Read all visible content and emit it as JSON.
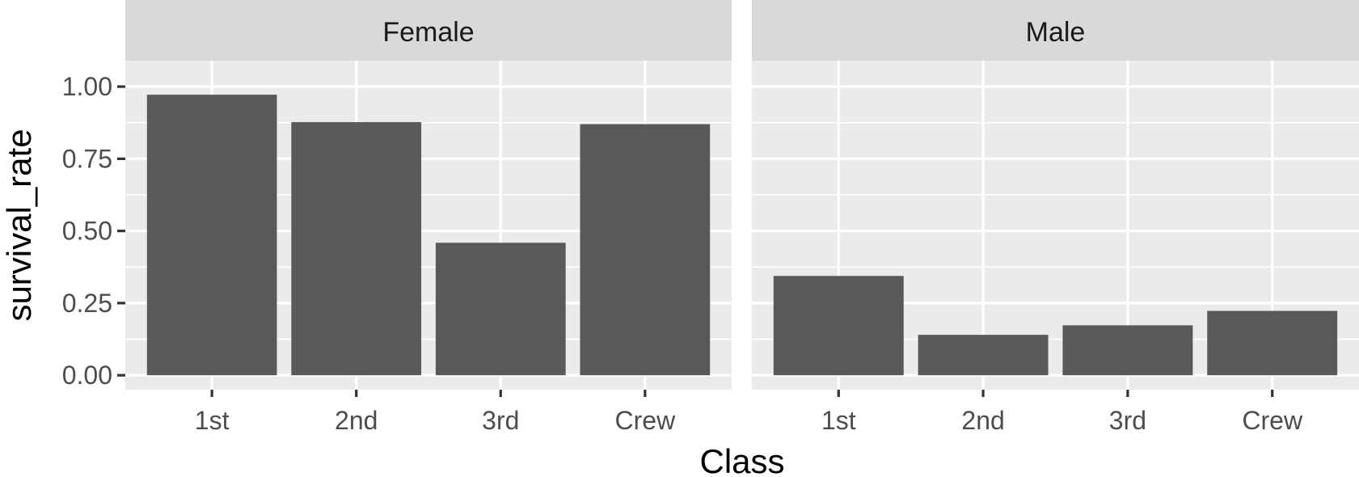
{
  "chart_data": {
    "type": "bar",
    "facet_by": "Sex",
    "categories": [
      "1st",
      "2nd",
      "3rd",
      "Crew"
    ],
    "facets": [
      {
        "label": "Female",
        "values": [
          0.972,
          0.877,
          0.459,
          0.87
        ]
      },
      {
        "label": "Male",
        "values": [
          0.344,
          0.14,
          0.173,
          0.223
        ]
      }
    ],
    "xlabel": "Class",
    "ylabel": "survival_rate",
    "ylim": [
      -0.05,
      1.09
    ],
    "yticks": [
      0,
      0.25,
      0.5,
      0.75,
      1.0
    ],
    "ytick_labels": [
      "0.00",
      "0.25",
      "0.50",
      "0.75",
      "1.00"
    ],
    "grid": true,
    "legend": "none",
    "colors": {
      "bar": "#595959",
      "panel_background": "#ebebeb",
      "strip_background": "#d9d9d9",
      "grid": "#ffffff"
    }
  }
}
